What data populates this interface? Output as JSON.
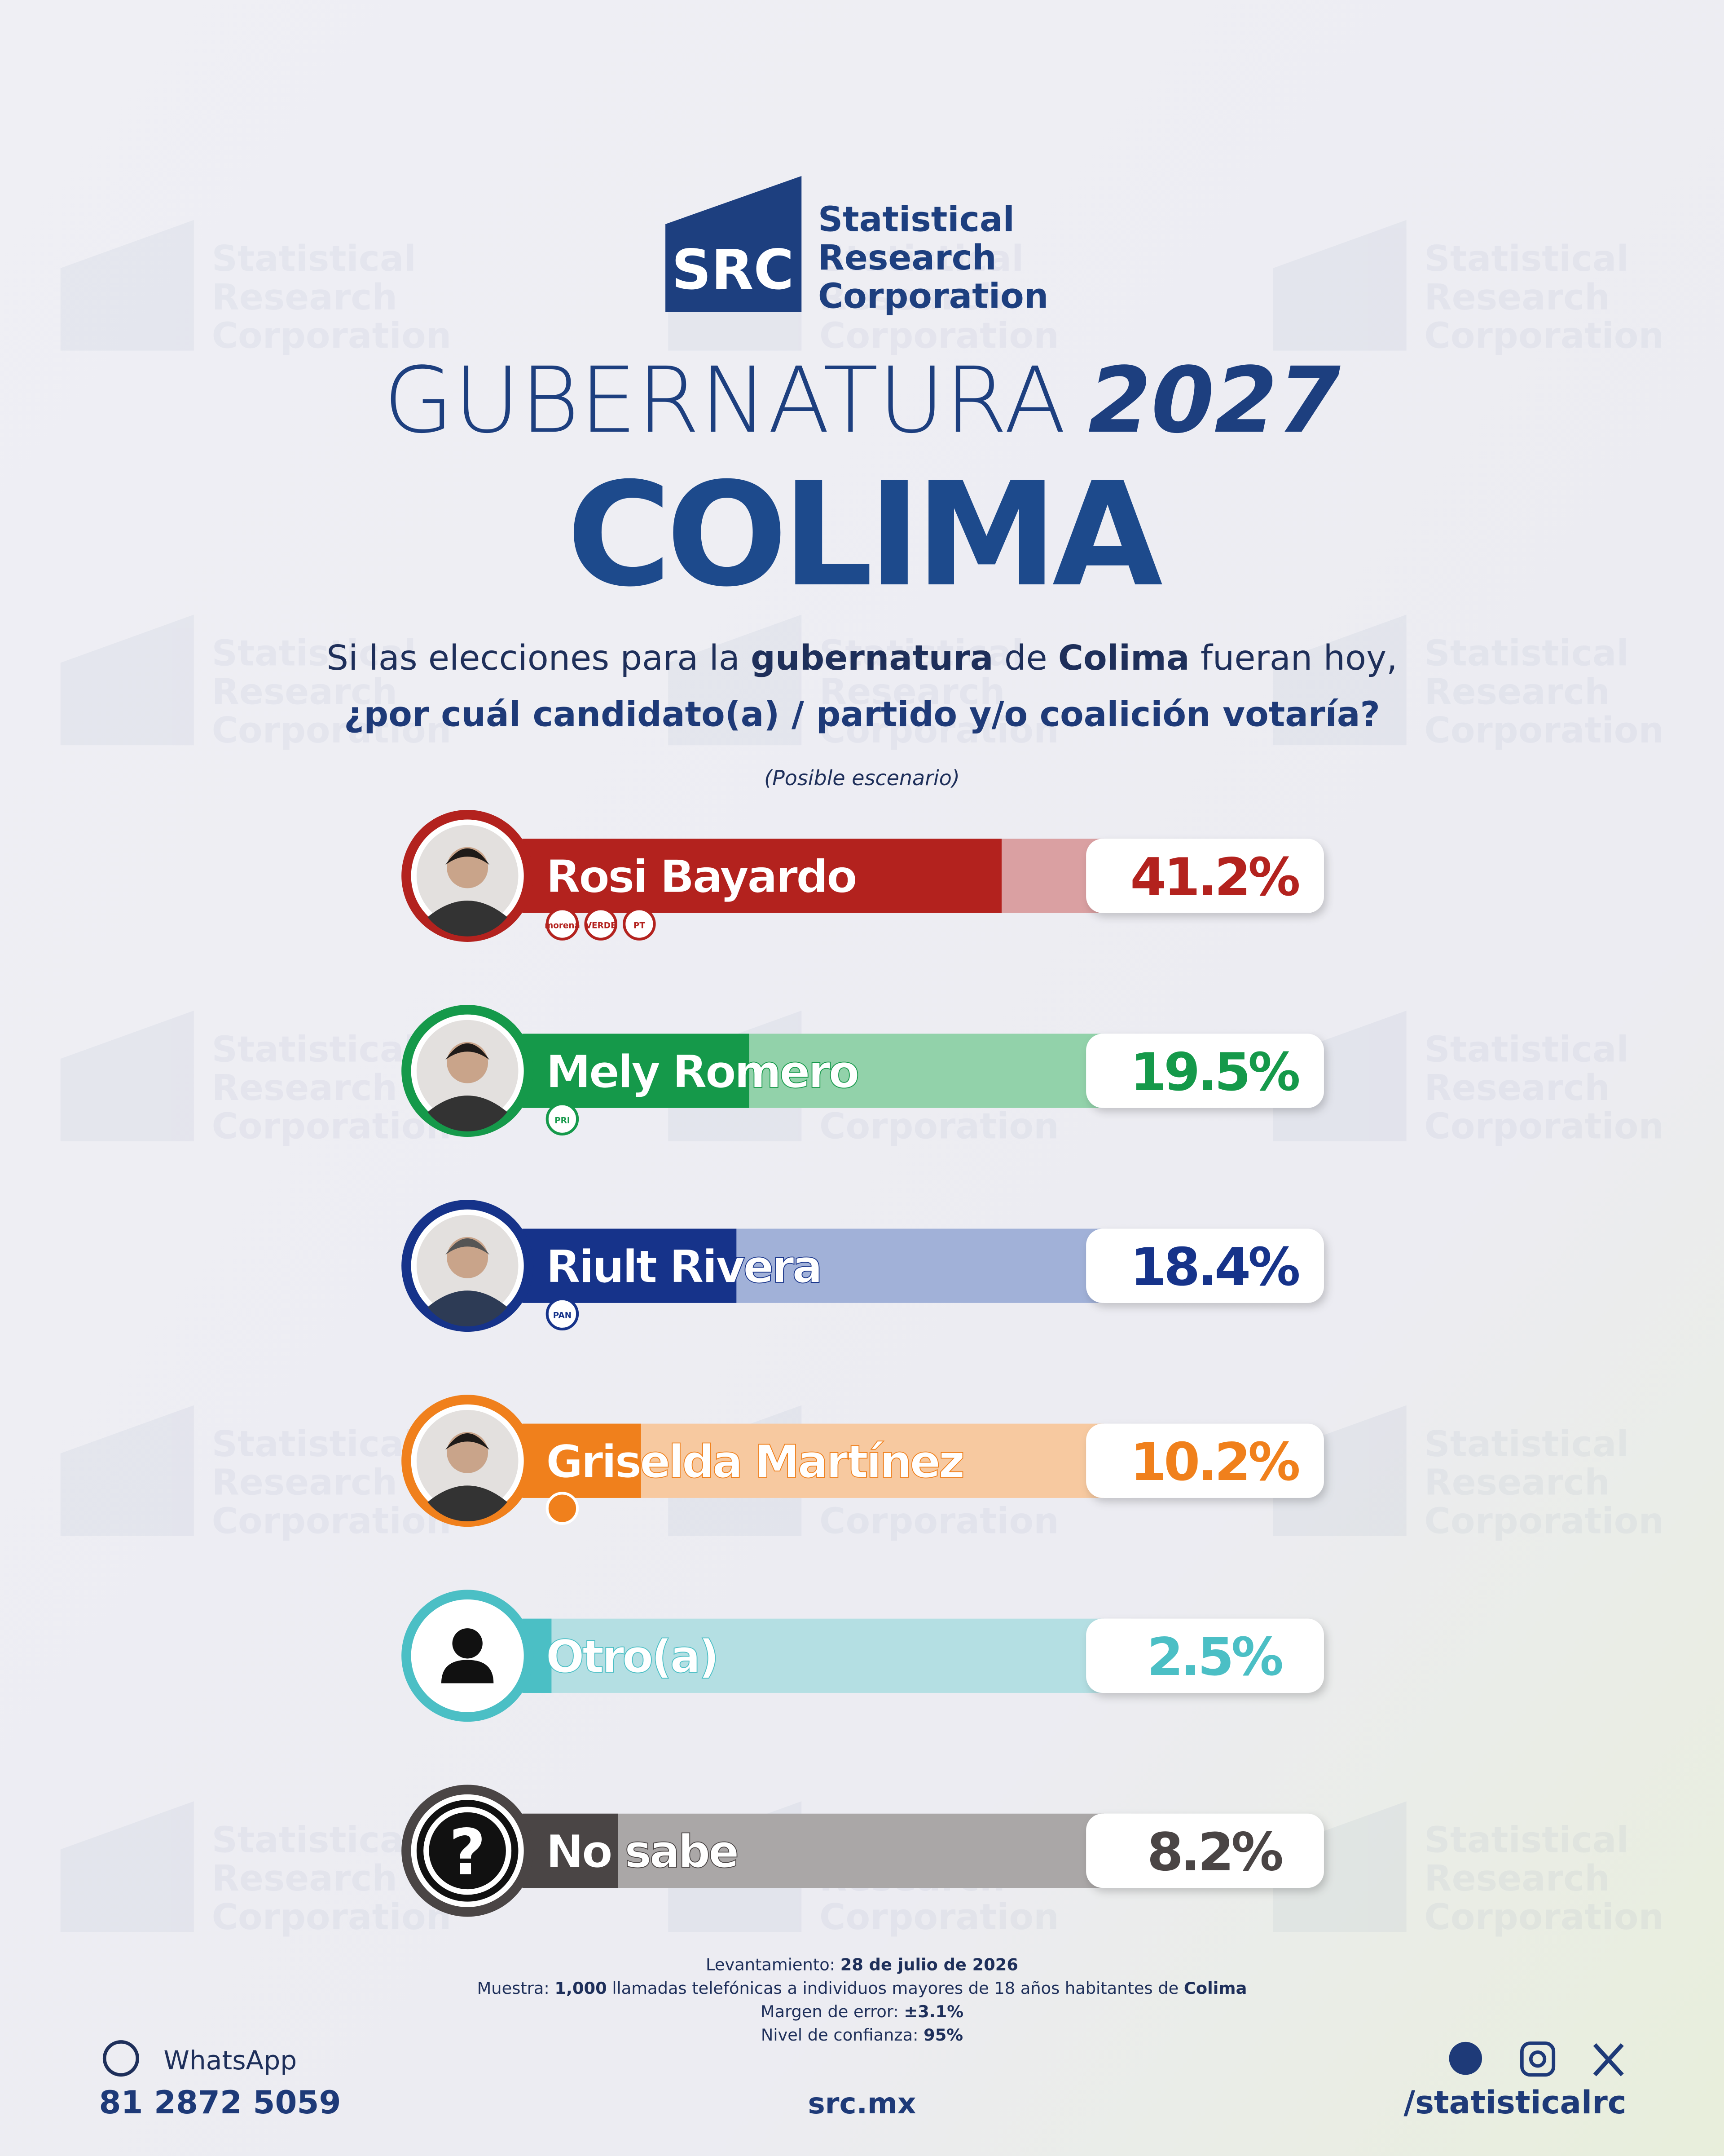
{
  "header": {
    "logo_mark": "SRC",
    "logo_lines": [
      "Statistical",
      "Research",
      "Corporation"
    ],
    "title": "GUBERNATURA",
    "title_year": "2027",
    "state": "COLIMA"
  },
  "question": {
    "line1": [
      "Si las elecciones para la ",
      "gubernatura",
      " de ",
      "Colima",
      " fueran hoy,"
    ],
    "line2": "¿por cuál candidato(a) / partido y/o coalición votaría?"
  },
  "chart_data": {
    "type": "bar",
    "orientation": "horizontal",
    "subtitle": "(Posible escenario)",
    "categories": [
      "Rosi Bayardo",
      "Mely Romero",
      "Riult Rivera",
      "Griselda Martínez",
      "Otro(a)",
      "No sabe"
    ],
    "values": [
      41.2,
      19.5,
      18.4,
      10.2,
      2.5,
      8.2
    ],
    "value_labels": [
      "41.2%",
      "19.5%",
      "18.4%",
      "10.2%",
      "2.5%",
      "8.2%"
    ],
    "colors": [
      "#b3221e",
      "#15994a",
      "#16338a",
      "#f0801c",
      "#4bbfc5",
      "#4a4545"
    ],
    "track_colors": [
      "#daa0a2",
      "#92d2aa",
      "#a1b1d8",
      "#f7c9a0",
      "#b4dfe3",
      "#aaa7a7"
    ],
    "parties": [
      [
        "morena",
        "VERDE",
        "PT"
      ],
      [
        "PRI"
      ],
      [
        "PAN"
      ],
      [],
      [],
      []
    ],
    "xlim": [
      0,
      50
    ]
  },
  "icons": {
    "unknown": "?"
  },
  "methodology": [
    [
      "Levantamiento: ",
      "28 de julio de 2026"
    ],
    [
      "Muestra: ",
      "1,000",
      " llamadas telefónicas a individuos mayores de 18 años habitantes de ",
      "Colima"
    ],
    [
      "Margen de error: ",
      "±3.1%"
    ],
    [
      "Nivel de confianza: ",
      "95%"
    ]
  ],
  "footer": {
    "whatsapp": "WhatsApp",
    "phone": "81 2872 5059",
    "website": "src.mx",
    "handle": "/statisticalrc"
  }
}
